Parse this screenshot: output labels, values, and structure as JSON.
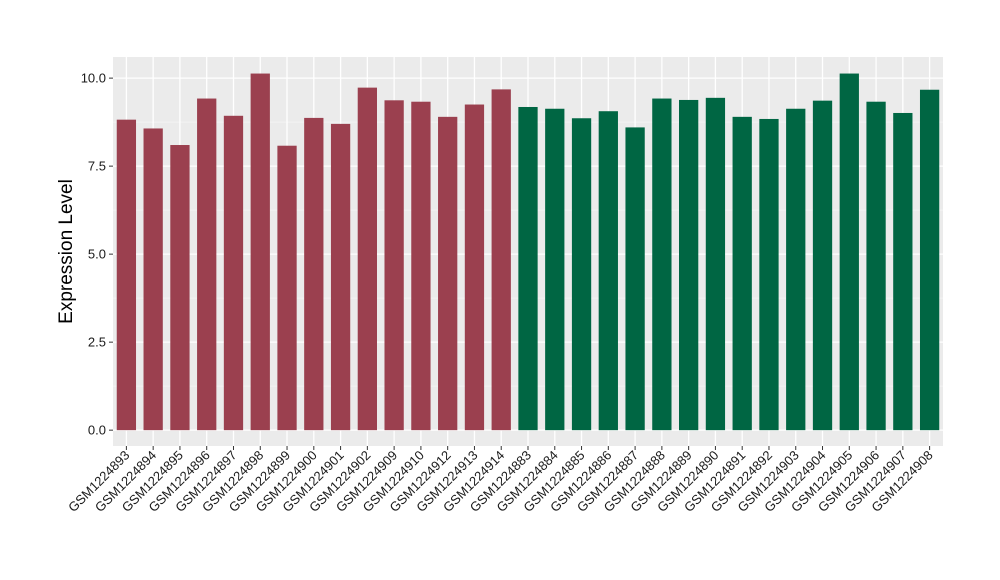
{
  "chart_data": {
    "type": "bar",
    "title": "",
    "xlabel": "",
    "ylabel": "Expression Level",
    "ylim": [
      -0.45,
      10.6
    ],
    "yticks": [
      0.0,
      2.5,
      5.0,
      7.5,
      10.0
    ],
    "ytick_labels": [
      "0.0",
      "2.5",
      "5.0",
      "7.5",
      "10.0"
    ],
    "grid": true,
    "legend": "none",
    "panel_background": "#ebebeb",
    "categories": [
      "GSM1224893",
      "GSM1224894",
      "GSM1224895",
      "GSM1224896",
      "GSM1224897",
      "GSM1224898",
      "GSM1224899",
      "GSM1224900",
      "GSM1224901",
      "GSM1224902",
      "GSM1224909",
      "GSM1224910",
      "GSM1224912",
      "GSM1224913",
      "GSM1224914",
      "GSM1224883",
      "GSM1224884",
      "GSM1224885",
      "GSM1224886",
      "GSM1224887",
      "GSM1224888",
      "GSM1224889",
      "GSM1224890",
      "GSM1224891",
      "GSM1224892",
      "GSM1224903",
      "GSM1224904",
      "GSM1224905",
      "GSM1224906",
      "GSM1224907",
      "GSM1224908"
    ],
    "values": [
      8.82,
      8.57,
      8.1,
      9.42,
      8.93,
      10.13,
      8.08,
      8.87,
      8.7,
      9.73,
      9.37,
      9.33,
      8.9,
      9.25,
      9.68,
      9.18,
      9.13,
      8.86,
      9.06,
      8.6,
      9.42,
      9.38,
      9.44,
      8.9,
      8.84,
      9.13,
      9.36,
      10.13,
      9.33,
      9.01,
      9.67
    ],
    "bar_colors": [
      "#9b404f",
      "#9b404f",
      "#9b404f",
      "#9b404f",
      "#9b404f",
      "#9b404f",
      "#9b404f",
      "#9b404f",
      "#9b404f",
      "#9b404f",
      "#9b404f",
      "#9b404f",
      "#9b404f",
      "#9b404f",
      "#9b404f",
      "#006643",
      "#006643",
      "#006643",
      "#006643",
      "#006643",
      "#006643",
      "#006643",
      "#006643",
      "#006643",
      "#006643",
      "#006643",
      "#006643",
      "#006643",
      "#006643",
      "#006643",
      "#006643"
    ]
  }
}
